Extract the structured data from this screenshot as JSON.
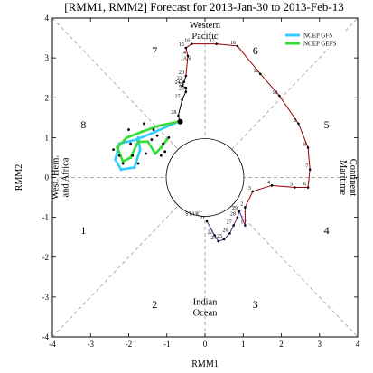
{
  "chart_data": {
    "type": "scatter",
    "title": "[RMM1, RMM2] Forecast for 2013-Jan-30 to 2013-Feb-13",
    "xlabel": "RMM1",
    "ylabel": "RMM2",
    "xlim": [
      -4,
      4
    ],
    "ylim": [
      -4,
      4
    ],
    "x_ticks": [
      "-4",
      "-3",
      "-2",
      "-1",
      "0",
      "1",
      "2",
      "3",
      "4"
    ],
    "y_ticks": [
      "-4",
      "-3",
      "-2",
      "-1",
      "0",
      "1",
      "2",
      "3",
      "4"
    ],
    "grid": false,
    "legend_position": "top-right",
    "phases": [
      "1",
      "2",
      "3",
      "4",
      "5",
      "6",
      "7",
      "8"
    ],
    "regions": {
      "top": [
        "Western",
        "Pacific"
      ],
      "bottom": [
        "Indian",
        "Ocean"
      ],
      "left": [
        "West. Hem.",
        "and Africa"
      ],
      "right": [
        "Maritime",
        "Continent"
      ]
    },
    "month_labels": [
      {
        "text": "JAN",
        "x": -0.5,
        "y": 2.95,
        "color": "#cc0000"
      },
      {
        "text": "START",
        "x": -0.3,
        "y": -0.95,
        "color": "#5a2a82"
      }
    ],
    "series": [
      {
        "name": "observed-jan",
        "color": "#990000",
        "points": [
          {
            "label": "14",
            "x": -0.45,
            "y": 3.05
          },
          {
            "label": "15",
            "x": -0.5,
            "y": 3.25
          },
          {
            "label": "16",
            "x": -0.35,
            "y": 3.35
          },
          {
            "label": "17",
            "x": 0.3,
            "y": 3.35
          },
          {
            "label": "18",
            "x": 0.85,
            "y": 3.3
          },
          {
            "label": "11",
            "x": 1.45,
            "y": 2.6
          },
          {
            "label": "10",
            "x": 1.95,
            "y": 2.05
          },
          {
            "label": "9",
            "x": 2.45,
            "y": 1.35
          },
          {
            "label": "8",
            "x": 2.7,
            "y": 0.75
          },
          {
            "label": "7",
            "x": 2.75,
            "y": 0.2
          },
          {
            "label": "6",
            "x": 2.7,
            "y": -0.25
          },
          {
            "label": "5",
            "x": 2.35,
            "y": -0.25
          },
          {
            "label": "4",
            "x": 1.75,
            "y": -0.2
          },
          {
            "label": "3",
            "x": 1.25,
            "y": -0.35
          },
          {
            "label": "2",
            "x": 1.05,
            "y": -0.75
          },
          {
            "label": "1",
            "x": 1.05,
            "y": -1.2
          }
        ]
      },
      {
        "name": "observed-late-jan",
        "color": "#000000",
        "points": [
          {
            "label": "20",
            "x": -0.5,
            "y": 2.55
          },
          {
            "label": "22",
            "x": -0.55,
            "y": 2.4
          },
          {
            "label": "24",
            "x": -0.6,
            "y": 2.3
          },
          {
            "label": "25",
            "x": -0.5,
            "y": 2.25
          },
          {
            "label": "26",
            "x": -0.5,
            "y": 2.15
          },
          {
            "label": "27",
            "x": -0.6,
            "y": 1.95
          },
          {
            "label": "28",
            "x": -0.7,
            "y": 1.55
          },
          {
            "label": "",
            "x": -0.65,
            "y": 1.4
          }
        ]
      },
      {
        "name": "observed-feb",
        "color": "#5a2a82",
        "points": [
          {
            "label": "21",
            "x": 0.05,
            "y": -1.1
          },
          {
            "label": "22",
            "x": 0.25,
            "y": -1.45
          },
          {
            "label": "24",
            "x": 0.35,
            "y": -1.6
          },
          {
            "label": "25",
            "x": 0.5,
            "y": -1.55
          },
          {
            "label": "26",
            "x": 0.65,
            "y": -1.4
          },
          {
            "label": "27",
            "x": 0.75,
            "y": -1.2
          },
          {
            "label": "28",
            "x": 0.85,
            "y": -1.0
          },
          {
            "label": "29",
            "x": 0.9,
            "y": -0.85
          }
        ]
      },
      {
        "name": "NCEP GFS",
        "color": "#33ccff",
        "points": [
          {
            "x": -0.7,
            "y": 1.4
          },
          {
            "x": -1.3,
            "y": 1.15
          },
          {
            "x": -1.8,
            "y": 0.95
          },
          {
            "x": -2.25,
            "y": 0.85
          },
          {
            "x": -2.35,
            "y": 0.45
          },
          {
            "x": -2.2,
            "y": 0.2
          },
          {
            "x": -1.85,
            "y": 0.25
          },
          {
            "x": -1.7,
            "y": 0.7
          },
          {
            "x": -1.75,
            "y": 1.0
          }
        ]
      },
      {
        "name": "NCEP GEFS",
        "color": "#33dd33",
        "points": [
          {
            "x": -0.7,
            "y": 1.4
          },
          {
            "x": -1.2,
            "y": 1.3
          },
          {
            "x": -1.65,
            "y": 1.15
          },
          {
            "x": -2.05,
            "y": 1.0
          },
          {
            "x": -2.3,
            "y": 0.75
          },
          {
            "x": -2.15,
            "y": 0.4
          },
          {
            "x": -1.95,
            "y": 0.5
          },
          {
            "x": -1.75,
            "y": 0.9
          },
          {
            "x": -1.5,
            "y": 0.9
          },
          {
            "x": -1.3,
            "y": 0.6
          },
          {
            "x": -1.15,
            "y": 0.75
          },
          {
            "x": -1.0,
            "y": 0.95
          }
        ]
      }
    ],
    "ensemble_dots": [
      {
        "x": -1.9,
        "y": 0.55
      },
      {
        "x": -1.55,
        "y": 0.6
      },
      {
        "x": -1.4,
        "y": 0.95
      },
      {
        "x": -1.25,
        "y": 1.05
      },
      {
        "x": -1.1,
        "y": 0.85
      },
      {
        "x": -1.05,
        "y": 0.65
      },
      {
        "x": -1.15,
        "y": 0.55
      },
      {
        "x": -2.4,
        "y": 0.7
      },
      {
        "x": -2.25,
        "y": 0.55
      },
      {
        "x": -2.0,
        "y": 1.2
      },
      {
        "x": -1.95,
        "y": 0.85
      },
      {
        "x": -1.35,
        "y": 1.2
      },
      {
        "x": -0.95,
        "y": 1.0
      },
      {
        "x": -1.6,
        "y": 1.35
      },
      {
        "x": -2.15,
        "y": 0.35
      },
      {
        "x": -1.75,
        "y": 0.35
      }
    ]
  }
}
